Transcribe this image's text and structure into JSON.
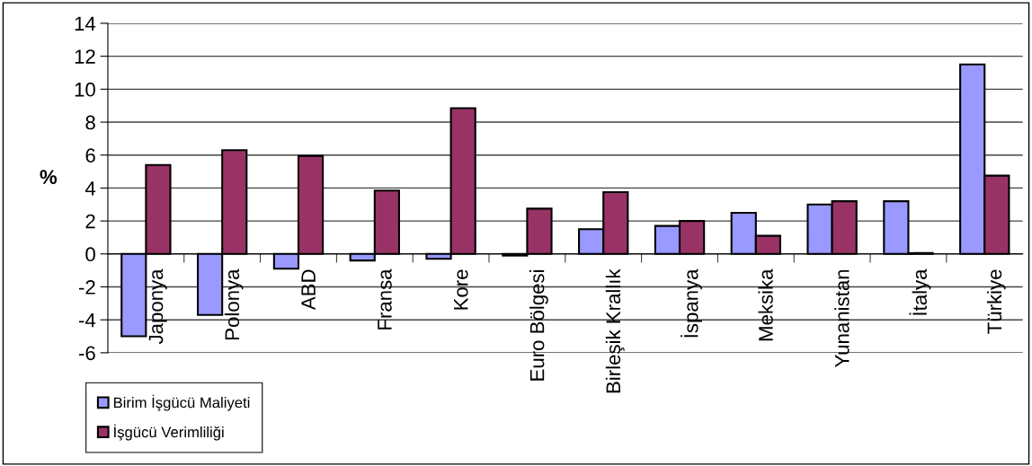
{
  "chart_data": {
    "type": "bar",
    "ylabel": "%",
    "categories": [
      "Japonya",
      "Polonya",
      "ABD",
      "Fransa",
      "Kore",
      "Euro Bölgesi",
      "Birleşik Krallık",
      "İspanya",
      "Meksika",
      "Yunanistan",
      "İtalya",
      "Türkiye"
    ],
    "series": [
      {
        "name": "Birim İşgücü Maliyeti",
        "color": "#9999ff",
        "values": [
          -5.0,
          -3.7,
          -0.9,
          -0.4,
          -0.3,
          -0.1,
          1.5,
          1.7,
          2.5,
          3.0,
          3.2,
          11.5
        ]
      },
      {
        "name": "İşgücü Verimliliği",
        "color": "#993366",
        "values": [
          5.4,
          6.3,
          5.95,
          3.85,
          8.85,
          2.75,
          3.75,
          2.0,
          1.1,
          3.2,
          0.05,
          4.75
        ]
      }
    ],
    "ylim": [
      -6,
      14
    ],
    "yticks": [
      -6,
      -4,
      -2,
      0,
      2,
      4,
      6,
      8,
      10,
      12,
      14
    ],
    "grid": "y",
    "legend": "bottom left"
  }
}
